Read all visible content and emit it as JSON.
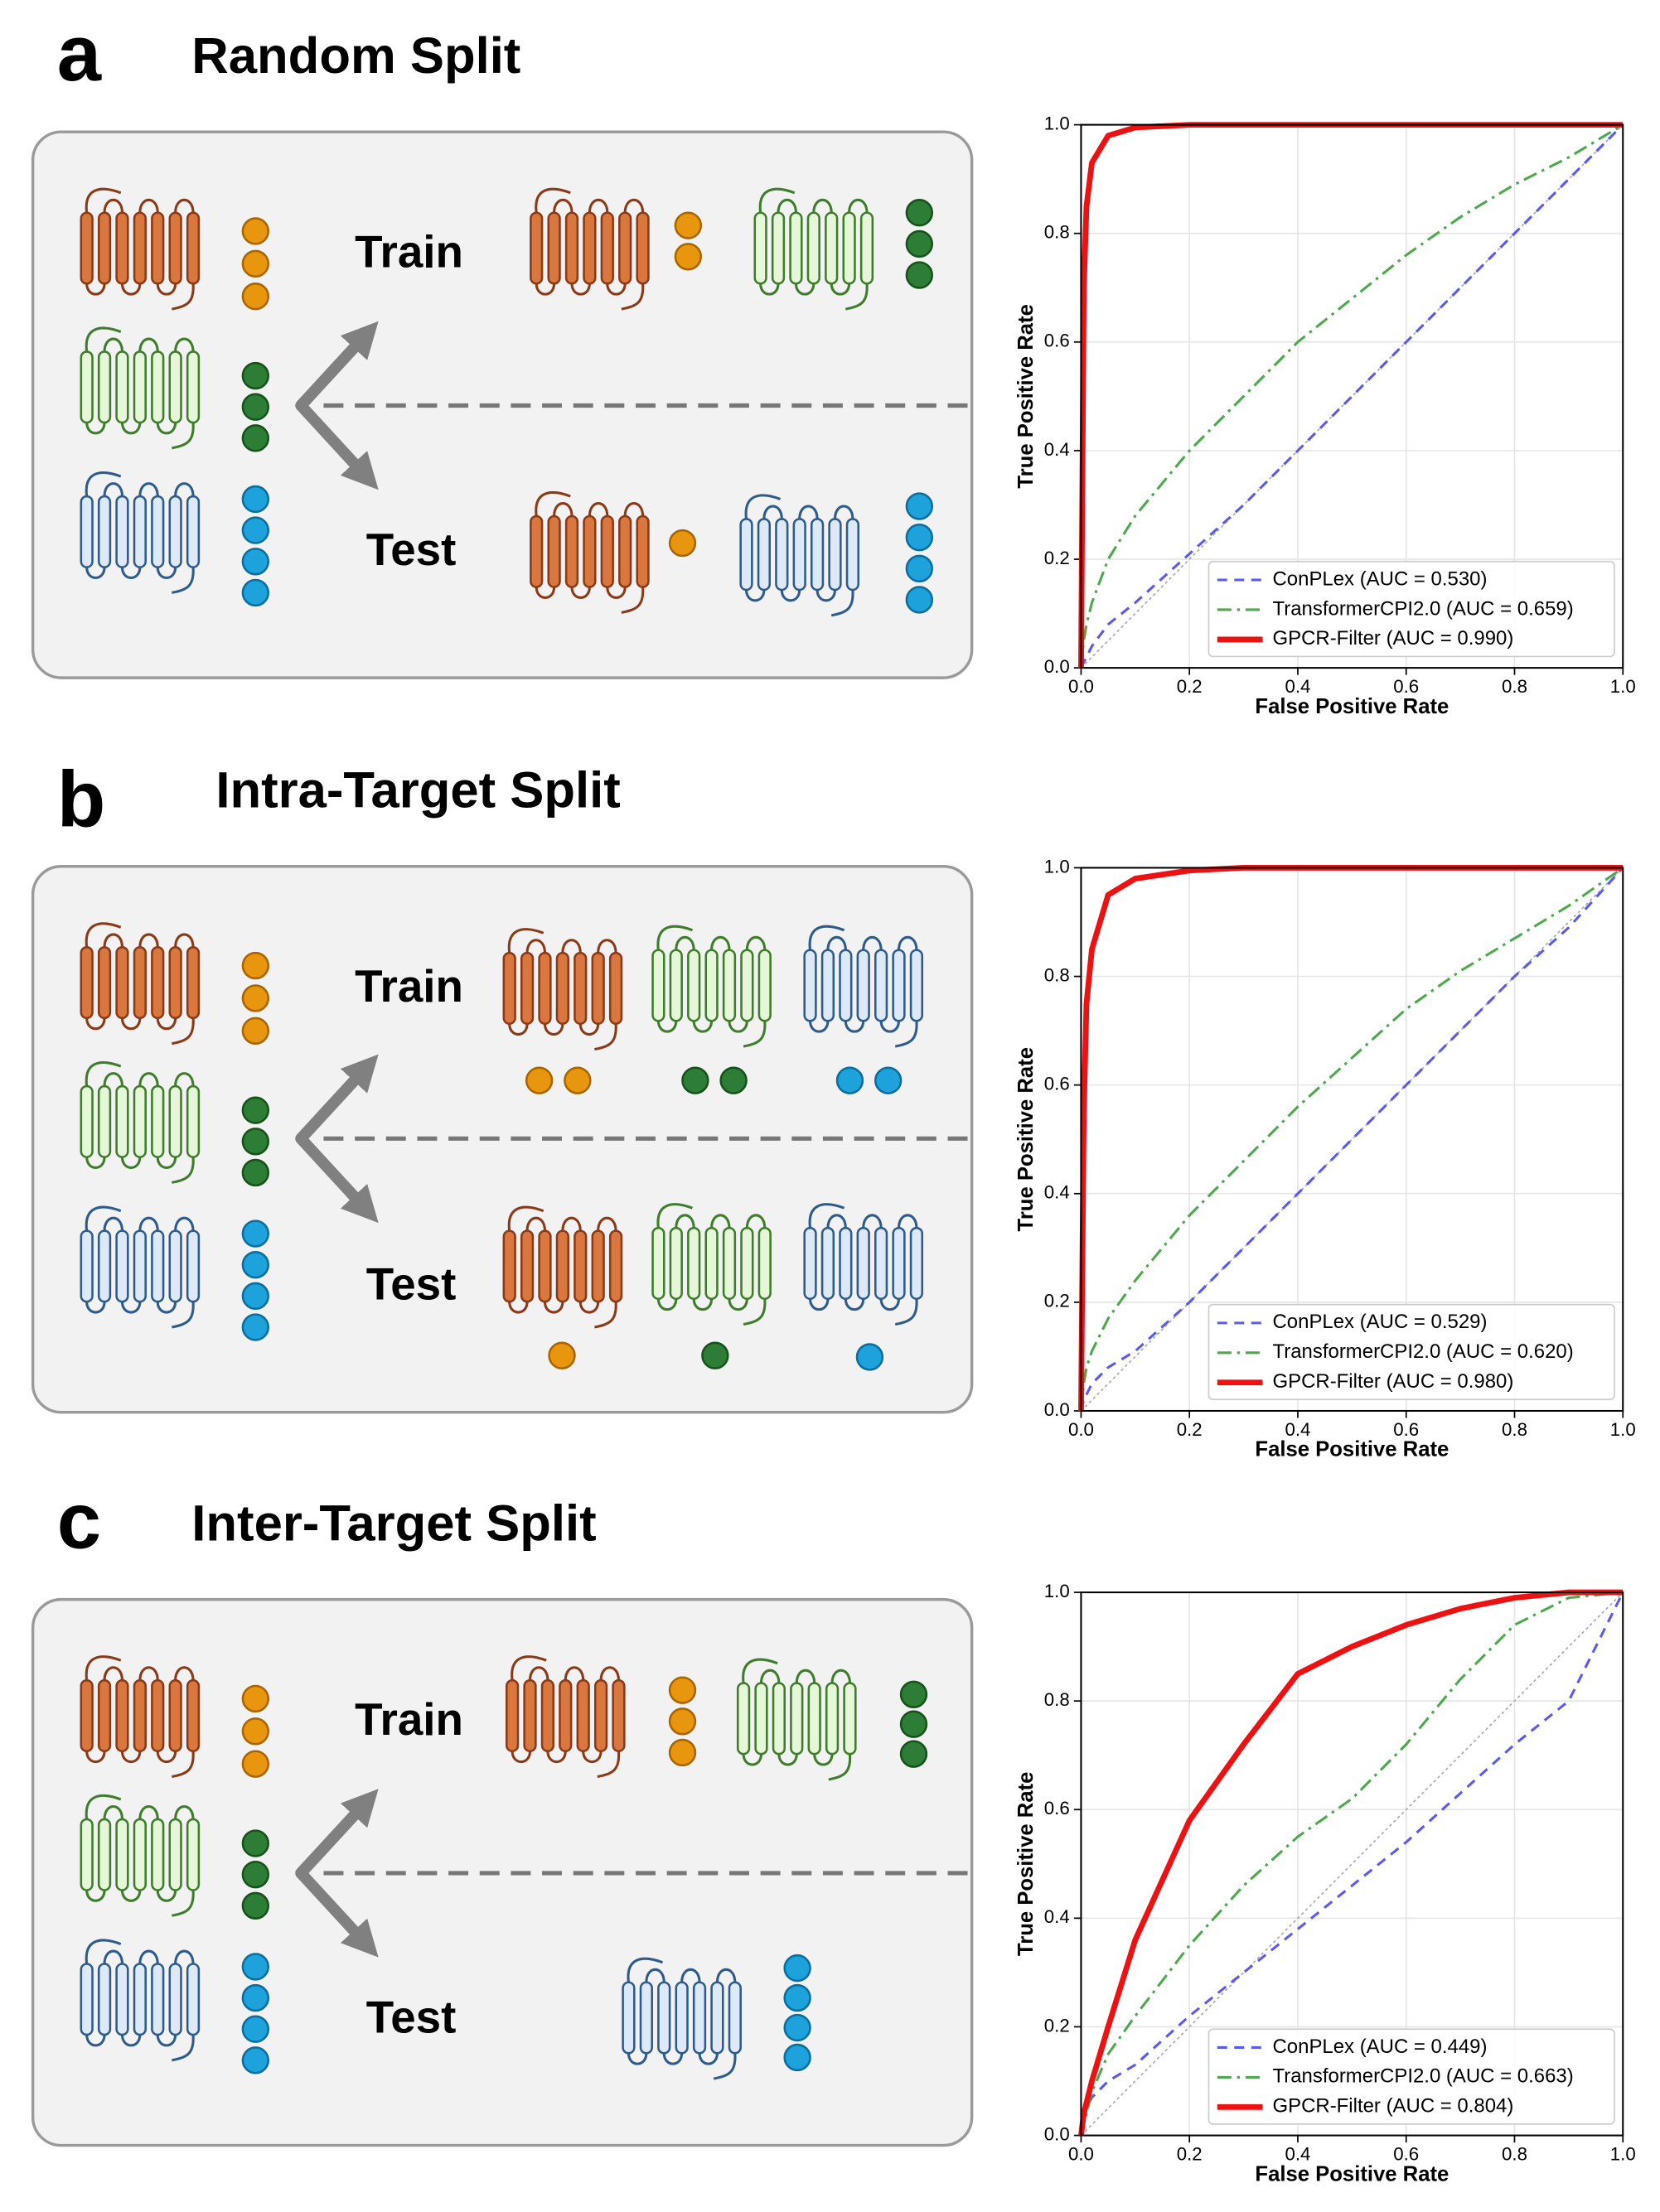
{
  "panels": [
    {
      "letter": "a",
      "title": "Random Split",
      "train": "Train",
      "test": "Test"
    },
    {
      "letter": "b",
      "title": "Intra-Target Split",
      "train": "Train",
      "test": "Test"
    },
    {
      "letter": "c",
      "title": "Inter-Target Split",
      "train": "Train",
      "test": "Test"
    }
  ],
  "chart_data": [
    {
      "type": "line",
      "xlabel": "False Positive Rate",
      "ylabel": "True Positive Rate",
      "xlim": [
        0,
        1
      ],
      "ylim": [
        0,
        1
      ],
      "grid": true,
      "legend": "lower right",
      "xticks": [
        {
          "value": 0,
          "label": "0.0"
        },
        {
          "value": 0.2,
          "label": "0.2"
        },
        {
          "value": 0.4,
          "label": "0.4"
        },
        {
          "value": 0.6,
          "label": "0.6"
        },
        {
          "value": 0.8,
          "label": "0.8"
        },
        {
          "value": 1,
          "label": "1.0"
        }
      ],
      "yticks": [
        {
          "value": 0,
          "label": "0.0"
        },
        {
          "value": 0.2,
          "label": "0.2"
        },
        {
          "value": 0.4,
          "label": "0.4"
        },
        {
          "value": 0.6,
          "label": "0.6"
        },
        {
          "value": 0.8,
          "label": "0.8"
        },
        {
          "value": 1,
          "label": "1.0"
        }
      ],
      "x": [
        0,
        0.005,
        0.01,
        0.02,
        0.05,
        0.1,
        0.2,
        0.3,
        0.4,
        0.5,
        0.6,
        0.7,
        0.8,
        0.9,
        1.0
      ],
      "series": [
        {
          "name": "ConPLex (AUC = 0.530)",
          "color": "#5a5af0",
          "linestyle": "dashed",
          "values": [
            0,
            0.01,
            0.02,
            0.04,
            0.08,
            0.12,
            0.21,
            0.3,
            0.4,
            0.5,
            0.6,
            0.7,
            0.8,
            0.9,
            1
          ]
        },
        {
          "name": "TransformerCPI2.0 (AUC = 0.659)",
          "color": "#4ea84e",
          "linestyle": "dashdot",
          "values": [
            0,
            0.05,
            0.08,
            0.12,
            0.2,
            0.28,
            0.4,
            0.5,
            0.6,
            0.68,
            0.76,
            0.83,
            0.89,
            0.94,
            1
          ]
        },
        {
          "name": "GPCR-Filter (AUC = 0.990)",
          "color": "#ee1111",
          "linestyle": "solid",
          "values": [
            0,
            0.7,
            0.85,
            0.93,
            0.98,
            0.995,
            1,
            1,
            1,
            1,
            1,
            1,
            1,
            1,
            1
          ]
        }
      ]
    },
    {
      "type": "line",
      "xlabel": "False Positive Rate",
      "ylabel": "True Positive Rate",
      "xlim": [
        0,
        1
      ],
      "ylim": [
        0,
        1
      ],
      "grid": true,
      "legend": "lower right",
      "xticks": [
        {
          "value": 0,
          "label": "0.0"
        },
        {
          "value": 0.2,
          "label": "0.2"
        },
        {
          "value": 0.4,
          "label": "0.4"
        },
        {
          "value": 0.6,
          "label": "0.6"
        },
        {
          "value": 0.8,
          "label": "0.8"
        },
        {
          "value": 1,
          "label": "1.0"
        }
      ],
      "yticks": [
        {
          "value": 0,
          "label": "0.0"
        },
        {
          "value": 0.2,
          "label": "0.2"
        },
        {
          "value": 0.4,
          "label": "0.4"
        },
        {
          "value": 0.6,
          "label": "0.6"
        },
        {
          "value": 0.8,
          "label": "0.8"
        },
        {
          "value": 1,
          "label": "1.0"
        }
      ],
      "x": [
        0,
        0.005,
        0.01,
        0.02,
        0.05,
        0.1,
        0.2,
        0.3,
        0.4,
        0.5,
        0.6,
        0.7,
        0.8,
        0.9,
        1.0
      ],
      "series": [
        {
          "name": "ConPLex (AUC = 0.529)",
          "color": "#5a5af0",
          "linestyle": "dashed",
          "values": [
            0,
            0.02,
            0.03,
            0.05,
            0.08,
            0.11,
            0.2,
            0.3,
            0.4,
            0.5,
            0.6,
            0.7,
            0.8,
            0.89,
            1
          ]
        },
        {
          "name": "TransformerCPI2.0 (AUC = 0.620)",
          "color": "#4ea84e",
          "linestyle": "dashdot",
          "values": [
            0,
            0.05,
            0.08,
            0.11,
            0.17,
            0.24,
            0.36,
            0.46,
            0.56,
            0.65,
            0.74,
            0.81,
            0.87,
            0.93,
            1
          ]
        },
        {
          "name": "GPCR-Filter (AUC = 0.980)",
          "color": "#ee1111",
          "linestyle": "solid",
          "values": [
            0,
            0.55,
            0.75,
            0.85,
            0.95,
            0.98,
            0.995,
            1,
            1,
            1,
            1,
            1,
            1,
            1,
            1
          ]
        }
      ]
    },
    {
      "type": "line",
      "xlabel": "False Positive Rate",
      "ylabel": "True Positive Rate",
      "xlim": [
        0,
        1
      ],
      "ylim": [
        0,
        1
      ],
      "grid": true,
      "legend": "lower right",
      "xticks": [
        {
          "value": 0,
          "label": "0.0"
        },
        {
          "value": 0.2,
          "label": "0.2"
        },
        {
          "value": 0.4,
          "label": "0.4"
        },
        {
          "value": 0.6,
          "label": "0.6"
        },
        {
          "value": 0.8,
          "label": "0.8"
        },
        {
          "value": 1,
          "label": "1.0"
        }
      ],
      "yticks": [
        {
          "value": 0,
          "label": "0.0"
        },
        {
          "value": 0.2,
          "label": "0.2"
        },
        {
          "value": 0.4,
          "label": "0.4"
        },
        {
          "value": 0.6,
          "label": "0.6"
        },
        {
          "value": 0.8,
          "label": "0.8"
        },
        {
          "value": 1,
          "label": "1.0"
        }
      ],
      "x": [
        0,
        0.005,
        0.01,
        0.02,
        0.05,
        0.1,
        0.2,
        0.3,
        0.4,
        0.5,
        0.6,
        0.7,
        0.8,
        0.9,
        1.0
      ],
      "series": [
        {
          "name": "ConPLex (AUC = 0.449)",
          "color": "#5a5af0",
          "linestyle": "dashed",
          "values": [
            0,
            0.03,
            0.05,
            0.07,
            0.1,
            0.13,
            0.22,
            0.3,
            0.38,
            0.46,
            0.54,
            0.63,
            0.72,
            0.8,
            1
          ]
        },
        {
          "name": "TransformerCPI2.0 (AUC = 0.663)",
          "color": "#4ea84e",
          "linestyle": "dashdot",
          "values": [
            0,
            0.02,
            0.04,
            0.08,
            0.15,
            0.22,
            0.35,
            0.46,
            0.55,
            0.62,
            0.72,
            0.84,
            0.94,
            0.99,
            1
          ]
        },
        {
          "name": "GPCR-Filter (AUC = 0.804)",
          "color": "#ee1111",
          "linestyle": "solid",
          "values": [
            0,
            0.04,
            0.06,
            0.1,
            0.2,
            0.36,
            0.58,
            0.72,
            0.85,
            0.9,
            0.94,
            0.97,
            0.99,
            1,
            1
          ]
        }
      ]
    }
  ]
}
